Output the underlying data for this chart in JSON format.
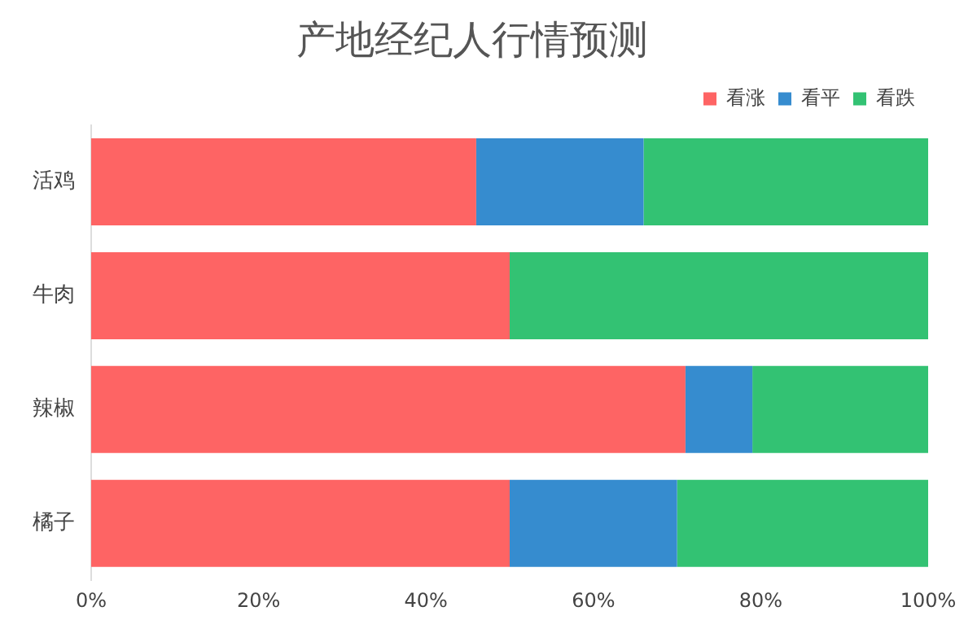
{
  "chart_data": {
    "type": "bar",
    "title": "产地经纪人行情预测",
    "orientation": "horizontal",
    "stacked": true,
    "categories": [
      "活鸡",
      "牛肉",
      "辣椒",
      "橘子"
    ],
    "series": [
      {
        "name": "看涨",
        "color": "#fe6464",
        "values": [
          46,
          50,
          71,
          50
        ]
      },
      {
        "name": "看平",
        "color": "#368ccf",
        "values": [
          20,
          0,
          8,
          20
        ]
      },
      {
        "name": "看跌",
        "color": "#33c273",
        "values": [
          34,
          50,
          21,
          30
        ]
      }
    ],
    "xlim": [
      0,
      100
    ],
    "xticks": [
      {
        "value": 0,
        "label": "0%"
      },
      {
        "value": 20,
        "label": "20%"
      },
      {
        "value": 40,
        "label": "40%"
      },
      {
        "value": 60,
        "label": "60%"
      },
      {
        "value": 80,
        "label": "80%"
      },
      {
        "value": 100,
        "label": "100%"
      }
    ],
    "grid": false,
    "legend": "top right"
  }
}
